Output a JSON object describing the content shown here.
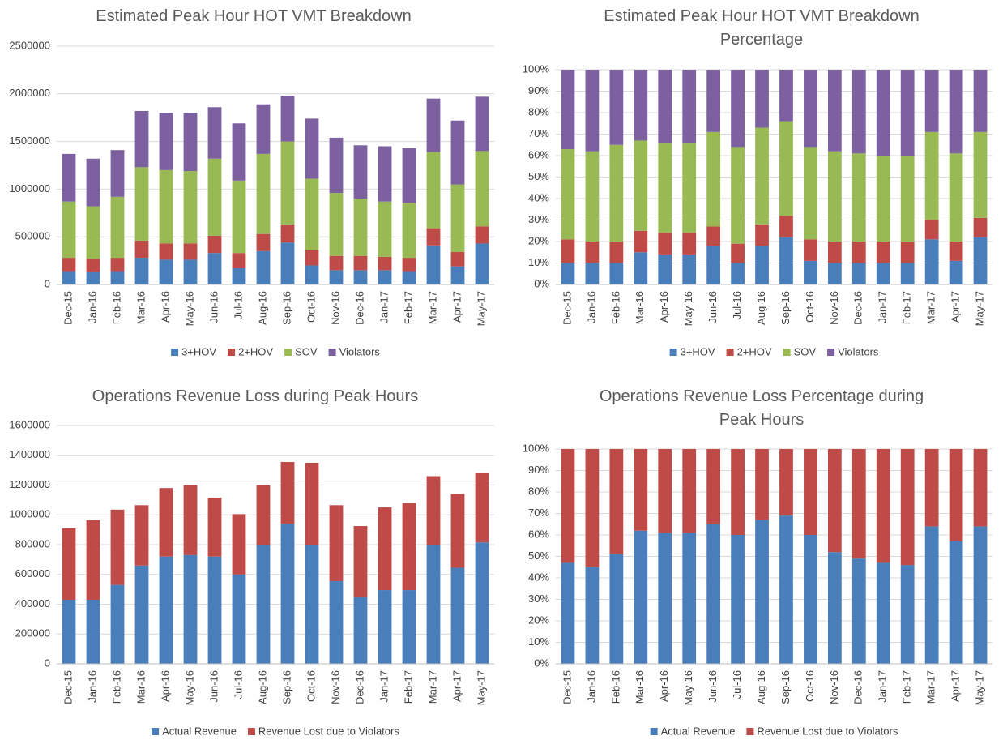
{
  "chart_data": [
    {
      "type": "bar",
      "stacked": true,
      "title": "Estimated Peak Hour HOT VMT Breakdown",
      "categories": [
        "Dec-15",
        "Jan-16",
        "Feb-16",
        "Mar-16",
        "Apr-16",
        "May-16",
        "Jun-16",
        "Jul-16",
        "Aug-16",
        "Sep-16",
        "Oct-16",
        "Nov-16",
        "Dec-16",
        "Jan-17",
        "Feb-17",
        "Mar-17",
        "Apr-17",
        "May-17"
      ],
      "series": [
        {
          "name": "3+HOV",
          "color": "#4a7ebb",
          "values": [
            140000,
            130000,
            140000,
            280000,
            260000,
            260000,
            330000,
            170000,
            350000,
            440000,
            200000,
            150000,
            150000,
            150000,
            140000,
            410000,
            190000,
            430000
          ]
        },
        {
          "name": "2+HOV",
          "color": "#be4b48",
          "values": [
            140000,
            140000,
            140000,
            180000,
            170000,
            170000,
            180000,
            160000,
            180000,
            190000,
            160000,
            150000,
            150000,
            140000,
            140000,
            180000,
            150000,
            180000
          ]
        },
        {
          "name": "SOV",
          "color": "#98b954",
          "values": [
            590000,
            550000,
            640000,
            770000,
            770000,
            760000,
            810000,
            760000,
            840000,
            870000,
            750000,
            660000,
            600000,
            580000,
            570000,
            800000,
            710000,
            790000
          ]
        },
        {
          "name": "Violators",
          "color": "#7d60a0",
          "values": [
            500000,
            500000,
            490000,
            590000,
            600000,
            610000,
            540000,
            600000,
            520000,
            480000,
            630000,
            580000,
            560000,
            580000,
            580000,
            560000,
            670000,
            570000
          ]
        }
      ],
      "ylim": [
        0,
        2500000
      ],
      "yticks": [
        0,
        500000,
        1000000,
        1500000,
        2000000,
        2500000
      ],
      "grid": true,
      "legend": "bottom"
    },
    {
      "type": "bar",
      "stacked": true,
      "title": "Estimated Peak Hour HOT VMT Breakdown Percentage",
      "categories": [
        "Dec-15",
        "Jan-16",
        "Feb-16",
        "Mar-16",
        "Apr-16",
        "May-16",
        "Jun-16",
        "Jul-16",
        "Aug-16",
        "Sep-16",
        "Oct-16",
        "Nov-16",
        "Dec-16",
        "Jan-17",
        "Feb-17",
        "Mar-17",
        "Apr-17",
        "May-17"
      ],
      "series": [
        {
          "name": "3+HOV",
          "color": "#4a7ebb",
          "values": [
            10,
            10,
            10,
            15,
            14,
            14,
            18,
            10,
            18,
            22,
            11,
            10,
            10,
            10,
            10,
            21,
            11,
            22
          ]
        },
        {
          "name": "2+HOV",
          "color": "#be4b48",
          "values": [
            11,
            10,
            10,
            10,
            10,
            10,
            9,
            9,
            10,
            10,
            10,
            10,
            10,
            10,
            10,
            9,
            9,
            9
          ]
        },
        {
          "name": "SOV",
          "color": "#98b954",
          "values": [
            42,
            42,
            45,
            42,
            42,
            42,
            44,
            45,
            45,
            44,
            43,
            42,
            41,
            40,
            40,
            41,
            41,
            40
          ]
        },
        {
          "name": "Violators",
          "color": "#7d60a0",
          "values": [
            37,
            38,
            35,
            33,
            34,
            34,
            29,
            36,
            27,
            24,
            36,
            38,
            39,
            40,
            40,
            29,
            39,
            29
          ]
        }
      ],
      "ylim": [
        0,
        100
      ],
      "yticks": [
        {
          "value": 0,
          "label": "0%"
        },
        {
          "value": 10,
          "label": "10%"
        },
        {
          "value": 20,
          "label": "20%"
        },
        {
          "value": 30,
          "label": "30%"
        },
        {
          "value": 40,
          "label": "40%"
        },
        {
          "value": 50,
          "label": "50%"
        },
        {
          "value": 60,
          "label": "60%"
        },
        {
          "value": 70,
          "label": "70%"
        },
        {
          "value": 80,
          "label": "80%"
        },
        {
          "value": 90,
          "label": "90%"
        },
        {
          "value": 100,
          "label": "100%"
        }
      ],
      "grid": true,
      "legend": "bottom"
    },
    {
      "type": "bar",
      "stacked": true,
      "title": "Operations Revenue Loss during Peak Hours",
      "categories": [
        "Dec-15",
        "Jan-16",
        "Feb-16",
        "Mar-16",
        "Apr-16",
        "May-16",
        "Jun-16",
        "Jul-16",
        "Aug-16",
        "Sep-16",
        "Oct-16",
        "Nov-16",
        "Dec-16",
        "Jan-17",
        "Feb-17",
        "Mar-17",
        "Apr-17",
        "May-17"
      ],
      "series": [
        {
          "name": "Actual Revenue",
          "color": "#4a7ebb",
          "values": [
            430000,
            430000,
            530000,
            660000,
            720000,
            730000,
            720000,
            600000,
            800000,
            940000,
            800000,
            555000,
            450000,
            495000,
            495000,
            800000,
            645000,
            815000
          ]
        },
        {
          "name": "Revenue Lost due to Violators",
          "color": "#be4b48",
          "values": [
            480000,
            535000,
            505000,
            405000,
            460000,
            470000,
            395000,
            405000,
            400000,
            415000,
            550000,
            510000,
            475000,
            555000,
            585000,
            460000,
            495000,
            465000
          ]
        }
      ],
      "ylim": [
        0,
        1600000
      ],
      "yticks": [
        0,
        200000,
        400000,
        600000,
        800000,
        1000000,
        1200000,
        1400000,
        1600000
      ],
      "grid": true,
      "legend": "bottom"
    },
    {
      "type": "bar",
      "stacked": true,
      "title": "Operations Revenue Loss Percentage during Peak Hours",
      "categories": [
        "Dec-15",
        "Jan-16",
        "Feb-16",
        "Mar-16",
        "Apr-16",
        "May-16",
        "Jun-16",
        "Jul-16",
        "Aug-16",
        "Sep-16",
        "Oct-16",
        "Nov-16",
        "Dec-16",
        "Jan-17",
        "Feb-17",
        "Mar-17",
        "Apr-17",
        "May-17"
      ],
      "series": [
        {
          "name": "Actual Revenue",
          "color": "#4a7ebb",
          "values": [
            47,
            45,
            51,
            62,
            61,
            61,
            65,
            60,
            67,
            69,
            60,
            52,
            49,
            47,
            46,
            64,
            57,
            64
          ]
        },
        {
          "name": "Revenue Lost due to Violators",
          "color": "#be4b48",
          "values": [
            53,
            55,
            49,
            38,
            39,
            39,
            35,
            40,
            33,
            31,
            40,
            48,
            51,
            53,
            54,
            36,
            43,
            36
          ]
        }
      ],
      "ylim": [
        0,
        100
      ],
      "yticks": [
        {
          "value": 0,
          "label": "0%"
        },
        {
          "value": 10,
          "label": "10%"
        },
        {
          "value": 20,
          "label": "20%"
        },
        {
          "value": 30,
          "label": "30%"
        },
        {
          "value": 40,
          "label": "40%"
        },
        {
          "value": 50,
          "label": "50%"
        },
        {
          "value": 60,
          "label": "60%"
        },
        {
          "value": 70,
          "label": "70%"
        },
        {
          "value": 80,
          "label": "80%"
        },
        {
          "value": 90,
          "label": "90%"
        },
        {
          "value": 100,
          "label": "100%"
        }
      ],
      "grid": true,
      "legend": "bottom"
    }
  ]
}
